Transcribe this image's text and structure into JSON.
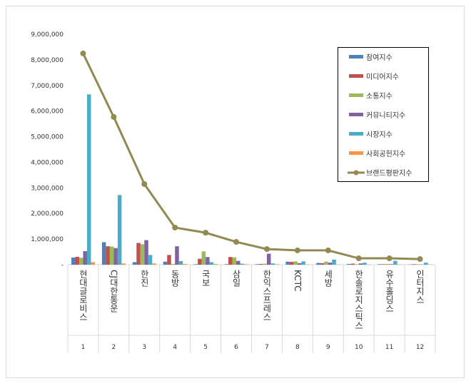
{
  "chart_data": {
    "type": "bar-line",
    "categories": [
      "현대글로비스",
      "CJ대한통운",
      "한진",
      "동방",
      "국보",
      "삼일",
      "한익스프레스",
      "KCTC",
      "세방",
      "한솔로지스틱스",
      "유수홀딩스",
      "인터지스"
    ],
    "ranks": [
      1,
      2,
      3,
      4,
      5,
      6,
      7,
      8,
      9,
      10,
      11,
      12
    ],
    "ylim": [
      0,
      9000000
    ],
    "yticks": [
      {
        "value": 0,
        "label": "-"
      },
      {
        "value": 1000000,
        "label": "1,000,000"
      },
      {
        "value": 2000000,
        "label": "2,000,000"
      },
      {
        "value": 3000000,
        "label": "3,000,000"
      },
      {
        "value": 4000000,
        "label": "4,000,000"
      },
      {
        "value": 5000000,
        "label": "5,000,000"
      },
      {
        "value": 6000000,
        "label": "6,000,000"
      },
      {
        "value": 7000000,
        "label": "7,000,000"
      },
      {
        "value": 8000000,
        "label": "8,000,000"
      },
      {
        "value": 9000000,
        "label": "9,000,000"
      }
    ],
    "series": [
      {
        "name": "참여지수",
        "color": "#4f81bd",
        "kind": "bar",
        "values": [
          280000,
          880000,
          100000,
          120000,
          20000,
          20000,
          20000,
          120000,
          70000,
          30000,
          20000,
          10000
        ]
      },
      {
        "name": "미디어지수",
        "color": "#c0504d",
        "kind": "bar",
        "values": [
          310000,
          720000,
          850000,
          380000,
          230000,
          300000,
          30000,
          110000,
          60000,
          40000,
          20000,
          20000
        ]
      },
      {
        "name": "소통지수",
        "color": "#9bbb59",
        "kind": "bar",
        "values": [
          270000,
          710000,
          800000,
          30000,
          520000,
          290000,
          40000,
          130000,
          120000,
          20000,
          30000,
          20000
        ]
      },
      {
        "name": "커뮤니티지수",
        "color": "#8064a2",
        "kind": "bar",
        "values": [
          530000,
          650000,
          960000,
          720000,
          300000,
          150000,
          430000,
          60000,
          80000,
          50000,
          20000,
          10000
        ]
      },
      {
        "name": "시장지수",
        "color": "#4bacc6",
        "kind": "bar",
        "values": [
          6650000,
          2720000,
          380000,
          140000,
          100000,
          40000,
          50000,
          130000,
          200000,
          80000,
          150000,
          80000
        ]
      },
      {
        "name": "사회공헌지수",
        "color": "#f79646",
        "kind": "bar",
        "values": [
          100000,
          50000,
          50000,
          30000,
          30000,
          20000,
          20000,
          10000,
          10000,
          10000,
          10000,
          10000
        ]
      },
      {
        "name": "브랜드평판지수",
        "color": "#938953",
        "kind": "line",
        "values": [
          8250000,
          5770000,
          3150000,
          1450000,
          1250000,
          890000,
          610000,
          560000,
          560000,
          250000,
          250000,
          220000
        ]
      }
    ]
  }
}
